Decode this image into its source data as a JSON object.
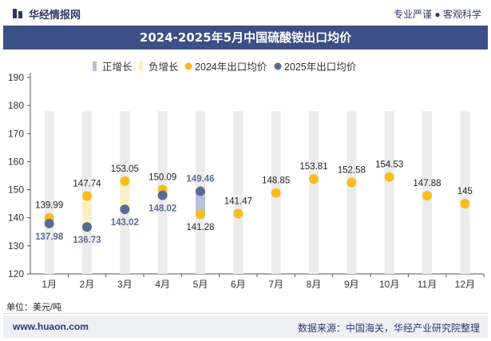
{
  "header": {
    "brand": "华经情报网",
    "tagline": "专业严谨 ● 客观科学",
    "title": "2024-2025年5月中国硫酸铵出口均价"
  },
  "footer": {
    "unit": "单位：美元/吨",
    "site": "www.huaon.com",
    "source": "数据来源：中国海关，华经产业研究院整理"
  },
  "colors": {
    "title_bar": "#3c4f86",
    "series_2024": "#f5bd1e",
    "series_2025": "#5a6a97",
    "positive_growth": "#b7c2d6",
    "negative_growth": "#fdefc4",
    "background_column": "#ececec"
  },
  "chart_data": {
    "type": "line",
    "categories": [
      "1月",
      "2月",
      "3月",
      "4月",
      "5月",
      "6月",
      "7月",
      "8月",
      "9月",
      "10月",
      "11月",
      "12月"
    ],
    "series": [
      {
        "name": "2024年出口均价",
        "values": [
          139.99,
          147.74,
          153.05,
          150.09,
          141.28,
          141.47,
          148.85,
          153.81,
          152.58,
          154.53,
          147.88,
          145
        ]
      },
      {
        "name": "2025年出口均价",
        "values": [
          137.98,
          136.73,
          143.02,
          148.02,
          149.46,
          null,
          null,
          null,
          null,
          null,
          null,
          null
        ]
      }
    ],
    "growth_legend": [
      "正增长",
      "负增长"
    ],
    "ylim": [
      120,
      190
    ],
    "yticks": [
      120,
      130,
      140,
      150,
      160,
      170,
      180,
      190
    ],
    "grid": false,
    "legend_position": "top"
  }
}
